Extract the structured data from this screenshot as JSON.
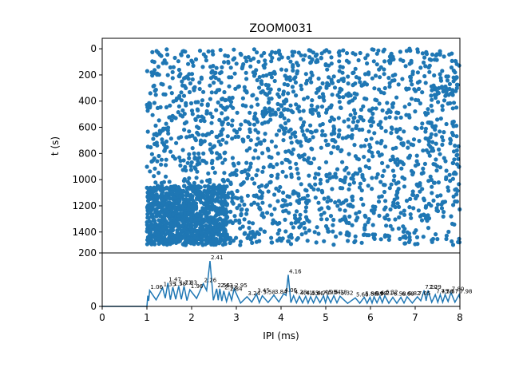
{
  "chart_data": [
    {
      "type": "scatter",
      "title": "ZOOM0031",
      "ylabel": "t (s)",
      "xlabel": "",
      "xlim": [
        0,
        8
      ],
      "ylim": [
        1560,
        -80
      ],
      "y_inverted": true,
      "yticks": [
        "0",
        "200",
        "400",
        "600",
        "800",
        "1000",
        "1200",
        "1400"
      ],
      "ytick_values": [
        0,
        200,
        400,
        600,
        800,
        1000,
        1200,
        1400
      ],
      "color": "#1f77b4",
      "description_of_points": "dense scatter of IPI vs time; points span IPI 1.0–8.0 ms and t 0–1500 s, with a dense cluster around IPI 1.0–2.8 ms for t 1050–1500 s",
      "clusters": [
        {
          "x_range": [
            1.0,
            8.0
          ],
          "y_range": [
            0,
            1500
          ],
          "n": 1900
        },
        {
          "x_range": [
            1.0,
            2.8
          ],
          "y_range": [
            1050,
            1500
          ],
          "n": 900
        }
      ]
    },
    {
      "type": "line",
      "xlabel": "IPI (ms)",
      "ylabel": "",
      "xlim": [
        0,
        8
      ],
      "ylim": [
        0,
        200
      ],
      "xticks": [
        "0",
        "1",
        "2",
        "3",
        "4",
        "5",
        "6",
        "7",
        "8"
      ],
      "xtick_values": [
        0,
        1,
        2,
        3,
        4,
        5,
        6,
        7,
        8
      ],
      "yticks": [
        "0",
        "200"
      ],
      "ytick_values": [
        0,
        200
      ],
      "color": "#1f77b4",
      "peaks": [
        {
          "x": 1.06,
          "y": 60,
          "label": "1.06"
        },
        {
          "x": 1.35,
          "y": 70,
          "label": "1.35"
        },
        {
          "x": 1.47,
          "y": 88,
          "label": "1.47"
        },
        {
          "x": 1.58,
          "y": 72,
          "label": "1.58"
        },
        {
          "x": 1.71,
          "y": 76,
          "label": "1.71"
        },
        {
          "x": 1.83,
          "y": 76,
          "label": "1.83"
        },
        {
          "x": 1.96,
          "y": 62,
          "label": "1.96"
        },
        {
          "x": 2.26,
          "y": 85,
          "label": "2.26"
        },
        {
          "x": 2.41,
          "y": 170,
          "label": "2.41"
        },
        {
          "x": 2.56,
          "y": 66,
          "label": "2.56"
        },
        {
          "x": 2.63,
          "y": 66,
          "label": "2.63"
        },
        {
          "x": 2.72,
          "y": 58,
          "label": "2.72"
        },
        {
          "x": 2.84,
          "y": 52,
          "label": "2.84"
        },
        {
          "x": 2.95,
          "y": 66,
          "label": "2.95"
        },
        {
          "x": 3.24,
          "y": 36,
          "label": "3.24"
        },
        {
          "x": 3.45,
          "y": 46,
          "label": "3.45"
        },
        {
          "x": 3.58,
          "y": 40,
          "label": "3.58"
        },
        {
          "x": 3.84,
          "y": 42,
          "label": "3.84"
        },
        {
          "x": 4.06,
          "y": 48,
          "label": "4.06"
        },
        {
          "x": 4.16,
          "y": 118,
          "label": "4.16"
        },
        {
          "x": 4.28,
          "y": 40,
          "label": "4.28"
        },
        {
          "x": 4.41,
          "y": 38,
          "label": "4.41"
        },
        {
          "x": 4.55,
          "y": 38,
          "label": "4.55"
        },
        {
          "x": 4.66,
          "y": 36,
          "label": "4.66"
        },
        {
          "x": 4.79,
          "y": 38,
          "label": "4.79"
        },
        {
          "x": 4.95,
          "y": 40,
          "label": "4.95"
        },
        {
          "x": 5.04,
          "y": 40,
          "label": "5.04"
        },
        {
          "x": 5.18,
          "y": 40,
          "label": "5.18"
        },
        {
          "x": 5.32,
          "y": 38,
          "label": "5.32"
        },
        {
          "x": 5.66,
          "y": 32,
          "label": "5.66"
        },
        {
          "x": 5.86,
          "y": 34,
          "label": "5.86"
        },
        {
          "x": 5.99,
          "y": 34,
          "label": "5.99"
        },
        {
          "x": 6.08,
          "y": 36,
          "label": "6.08"
        },
        {
          "x": 6.21,
          "y": 38,
          "label": "6.21"
        },
        {
          "x": 6.32,
          "y": 40,
          "label": "6.32"
        },
        {
          "x": 6.5,
          "y": 34,
          "label": "6.50"
        },
        {
          "x": 6.68,
          "y": 34,
          "label": "6.68"
        },
        {
          "x": 6.82,
          "y": 36,
          "label": "6.82"
        },
        {
          "x": 7.05,
          "y": 36,
          "label": "7.05"
        },
        {
          "x": 7.2,
          "y": 60,
          "label": "7.20"
        },
        {
          "x": 7.29,
          "y": 60,
          "label": "7.29"
        },
        {
          "x": 7.45,
          "y": 44,
          "label": "7.45"
        },
        {
          "x": 7.56,
          "y": 44,
          "label": "7.56"
        },
        {
          "x": 7.67,
          "y": 44,
          "label": "7.67"
        },
        {
          "x": 7.8,
          "y": 52,
          "label": "7.80"
        },
        {
          "x": 7.98,
          "y": 44,
          "label": "7.98"
        }
      ]
    }
  ]
}
